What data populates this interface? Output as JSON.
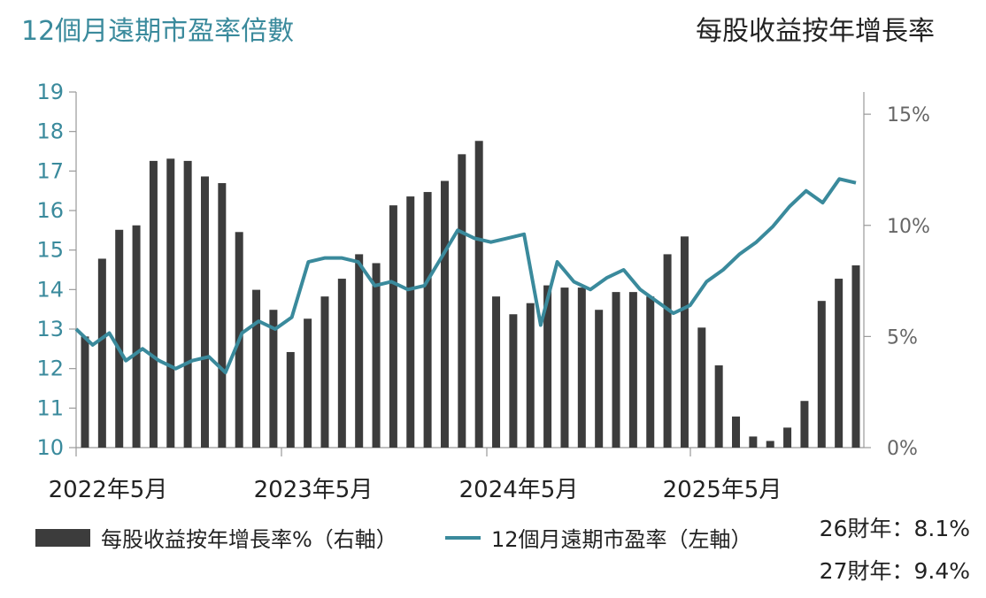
{
  "title_left": "12個月遠期市盈率倍數",
  "title_right": "每股收益按年增長率",
  "legend": {
    "bar_label": "每股收益按年增長率%（右軸）",
    "line_label": "12個月遠期市盈率（左軸）"
  },
  "notes": [
    "26財年：8.1%",
    "27財年：9.4%"
  ],
  "colors": {
    "bar": "#3c3c3c",
    "line": "#3a8a9c",
    "left_axis_text": "#3a8a9c",
    "right_axis_text": "#666666",
    "axis": "#999999"
  },
  "chart_data": {
    "type": "bar",
    "x_tick_labels": [
      "2022年5月",
      "2023年5月",
      "2024年5月",
      "2025年5月"
    ],
    "x_tick_indices": [
      0,
      12,
      24,
      36
    ],
    "y_left": {
      "ticks": [
        10,
        11,
        12,
        13,
        14,
        15,
        16,
        17,
        18,
        19
      ],
      "range": [
        10,
        19
      ]
    },
    "y_right": {
      "ticks": [
        "0%",
        "5%",
        "10%",
        "15%"
      ],
      "tick_values": [
        0,
        5,
        10,
        15
      ],
      "range": [
        0,
        16
      ]
    },
    "series": [
      {
        "name": "每股收益按年增長率%（右軸）",
        "type": "bar",
        "axis": "right",
        "values": [
          5.0,
          8.5,
          9.8,
          10.0,
          12.9,
          13.0,
          12.9,
          12.2,
          11.9,
          9.7,
          7.1,
          6.2,
          4.3,
          5.8,
          6.8,
          7.6,
          8.7,
          8.3,
          10.9,
          11.3,
          11.5,
          12.0,
          13.2,
          13.8,
          6.8,
          6.0,
          6.5,
          7.3,
          7.2,
          7.2,
          6.2,
          7.0,
          7.0,
          6.8,
          8.7,
          9.5,
          5.4,
          3.7,
          1.4,
          0.5,
          0.3,
          0.9,
          2.1,
          6.6,
          7.6,
          8.2
        ],
        "first_label_index": 0
      },
      {
        "name": "12個月遠期市盈率（左軸）",
        "type": "line",
        "axis": "left",
        "values": [
          13.0,
          12.6,
          12.9,
          12.2,
          12.5,
          12.2,
          12.0,
          12.2,
          12.3,
          11.9,
          12.9,
          13.2,
          13.0,
          13.3,
          14.7,
          14.8,
          14.8,
          14.7,
          14.1,
          14.2,
          14.0,
          14.1,
          14.8,
          15.5,
          15.3,
          15.2,
          15.3,
          15.4,
          13.1,
          14.7,
          14.2,
          14.0,
          14.3,
          14.5,
          14.0,
          13.7,
          13.4,
          13.6,
          14.2,
          14.5,
          14.9,
          15.2,
          15.6,
          16.1,
          16.5,
          16.2,
          16.8,
          16.7
        ]
      }
    ]
  }
}
